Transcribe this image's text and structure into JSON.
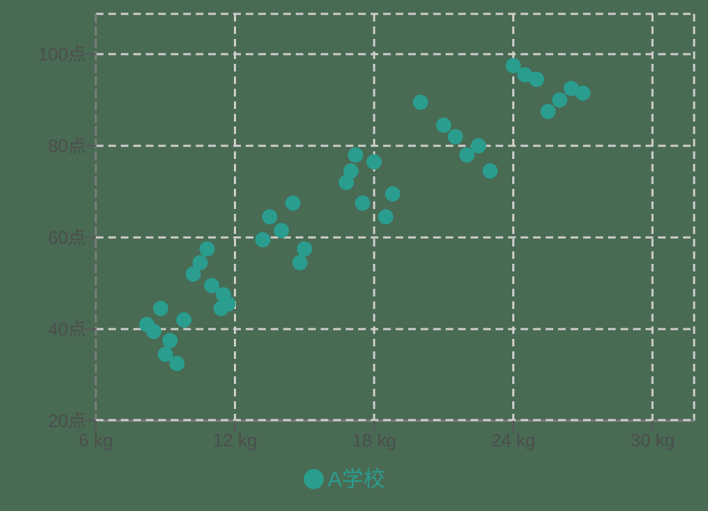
{
  "chart_data": {
    "type": "scatter",
    "title": "",
    "xlabel": "",
    "ylabel": "",
    "x_unit": "kg",
    "y_unit": "点",
    "xlim": [
      6,
      31.8
    ],
    "ylim": [
      20,
      108.8
    ],
    "grid": "dashed",
    "x_ticks": [
      {
        "value": 6,
        "label": "6 kg"
      },
      {
        "value": 12,
        "label": "12 kg"
      },
      {
        "value": 18,
        "label": "18 kg"
      },
      {
        "value": 24,
        "label": "24 kg"
      },
      {
        "value": 30,
        "label": "30 kg"
      }
    ],
    "y_ticks": [
      {
        "value": 20,
        "label": "20点"
      },
      {
        "value": 40,
        "label": "40点"
      },
      {
        "value": 60,
        "label": "60点"
      },
      {
        "value": 80,
        "label": "80点"
      },
      {
        "value": 100,
        "label": "100点"
      }
    ],
    "legend": {
      "position": "bottom-center",
      "items": [
        {
          "label": "A学校",
          "color": "#2a9d8f"
        }
      ]
    },
    "series": [
      {
        "name": "A学校",
        "color": "#2a9d8f",
        "points": [
          [
            8.2,
            41
          ],
          [
            8.5,
            39.5
          ],
          [
            8.8,
            44.5
          ],
          [
            9.0,
            34.5
          ],
          [
            9.2,
            37.5
          ],
          [
            9.5,
            32.5
          ],
          [
            9.8,
            42
          ],
          [
            10.2,
            52
          ],
          [
            10.5,
            54.5
          ],
          [
            10.8,
            57.5
          ],
          [
            11.0,
            49.5
          ],
          [
            11.4,
            44.5
          ],
          [
            11.5,
            47.5
          ],
          [
            11.7,
            45.5
          ],
          [
            13.2,
            59.5
          ],
          [
            13.5,
            64.5
          ],
          [
            14.0,
            61.5
          ],
          [
            14.5,
            67.5
          ],
          [
            14.8,
            54.5
          ],
          [
            15.0,
            57.5
          ],
          [
            16.8,
            72
          ],
          [
            17.0,
            74.5
          ],
          [
            17.2,
            78
          ],
          [
            17.5,
            67.5
          ],
          [
            18.0,
            76.5
          ],
          [
            18.5,
            64.5
          ],
          [
            18.8,
            69.5
          ],
          [
            20.0,
            89.5
          ],
          [
            21.0,
            84.5
          ],
          [
            21.5,
            82
          ],
          [
            22.0,
            78
          ],
          [
            22.5,
            80
          ],
          [
            23.0,
            74.5
          ],
          [
            24.0,
            97.5
          ],
          [
            24.5,
            95.5
          ],
          [
            25.0,
            94.5
          ],
          [
            25.5,
            87.5
          ],
          [
            26.0,
            90
          ],
          [
            26.5,
            92.5
          ],
          [
            27.0,
            91.5
          ]
        ]
      }
    ]
  },
  "colors": {
    "background": "#496a53",
    "point": "#2a9d8f",
    "grid_light": "#cfcfcc",
    "axis_gray": "#7a7d7e",
    "tick": "#55585a",
    "tick_label": "#4b4e4e",
    "legend_text": "#2a9d8f"
  }
}
